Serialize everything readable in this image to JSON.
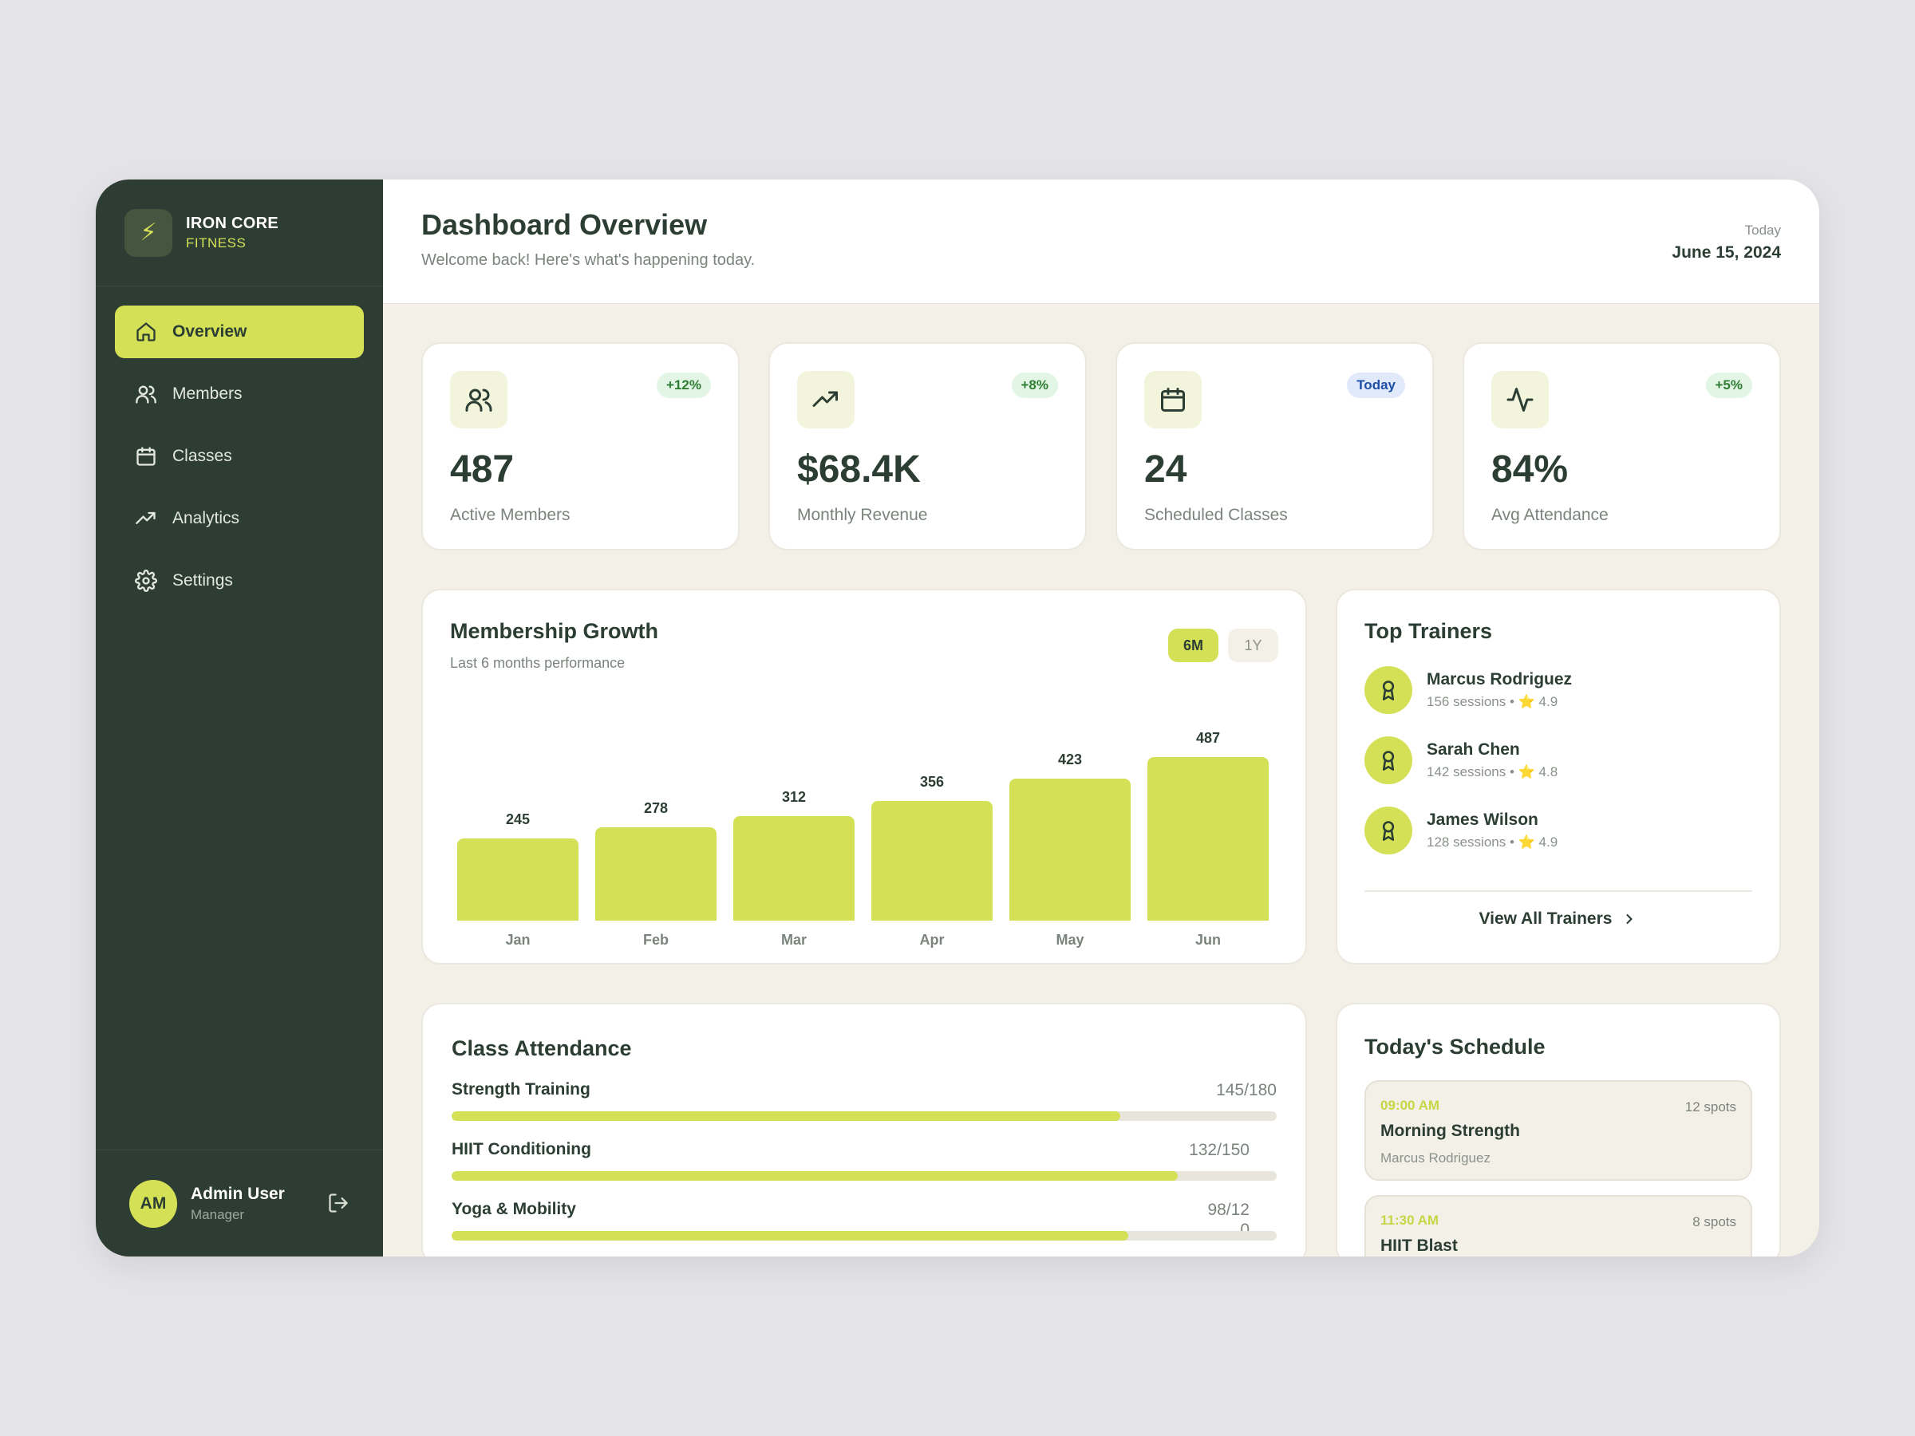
{
  "brand": {
    "name": "IRON CORE",
    "subtitle": "FITNESS",
    "logo_icon": "lightning-icon"
  },
  "nav": [
    {
      "label": "Overview",
      "icon": "home-icon",
      "active": true
    },
    {
      "label": "Members",
      "icon": "users-icon",
      "active": false
    },
    {
      "label": "Classes",
      "icon": "calendar-icon",
      "active": false
    },
    {
      "label": "Analytics",
      "icon": "trending-up-icon",
      "active": false
    },
    {
      "label": "Settings",
      "icon": "gear-icon",
      "active": false
    }
  ],
  "user": {
    "initials": "AM",
    "name": "Admin User",
    "role": "Manager",
    "logout_icon": "logout-icon"
  },
  "header": {
    "title": "Dashboard Overview",
    "subtitle": "Welcome back! Here's what's happening today.",
    "date_label": "Today",
    "date_value": "June 15, 2024"
  },
  "stats": [
    {
      "value": "487",
      "label": "Active Members",
      "badge": "+12%",
      "badge_type": "green",
      "icon": "users-icon"
    },
    {
      "value": "$68.4K",
      "label": "Monthly Revenue",
      "badge": "+8%",
      "badge_type": "green",
      "icon": "trending-up-icon"
    },
    {
      "value": "24",
      "label": "Scheduled Classes",
      "badge": "Today",
      "badge_type": "blue",
      "icon": "calendar-icon"
    },
    {
      "value": "84%",
      "label": "Avg Attendance",
      "badge": "+5%",
      "badge_type": "green",
      "icon": "activity-icon"
    }
  ],
  "growth": {
    "title": "Membership Growth",
    "subtitle": "Last 6 months performance",
    "ranges": [
      "6M",
      "1Y"
    ],
    "active_range": "6M"
  },
  "chart_data": {
    "type": "bar",
    "categories": [
      "Jan",
      "Feb",
      "Mar",
      "Apr",
      "May",
      "Jun"
    ],
    "values": [
      245,
      278,
      312,
      356,
      423,
      487
    ],
    "title": "Membership Growth",
    "xlabel": "",
    "ylabel": "",
    "color": "#d4e157"
  },
  "trainers": {
    "title": "Top Trainers",
    "items": [
      {
        "name": "Marcus Rodriguez",
        "sessions": "156 sessions",
        "rating": "4.9"
      },
      {
        "name": "Sarah Chen",
        "sessions": "142 sessions",
        "rating": "4.8"
      },
      {
        "name": "James Wilson",
        "sessions": "128 sessions",
        "rating": "4.9"
      }
    ],
    "view_all": "View All Trainers"
  },
  "attendance": {
    "title": "Class Attendance",
    "items": [
      {
        "name": "Strength Training",
        "count": "145/180",
        "fill": 0.81
      },
      {
        "name": "HIIT Conditioning",
        "count": "132/150",
        "fill": 0.88
      },
      {
        "name": "Yoga & Mobility",
        "count": "98/120",
        "fill": 0.82
      }
    ]
  },
  "schedule": {
    "title": "Today's Schedule",
    "items": [
      {
        "time": "09:00 AM",
        "spots": "12 spots",
        "name": "Morning Strength",
        "trainer": "Marcus Rodriguez"
      },
      {
        "time": "11:30 AM",
        "spots": "8 spots",
        "name": "HIIT Blast",
        "trainer": ""
      }
    ]
  },
  "colors": {
    "accent": "#d4e157",
    "sidebar": "#2e3d33",
    "background": "#f3f0e8",
    "text": "#2c3e33"
  }
}
